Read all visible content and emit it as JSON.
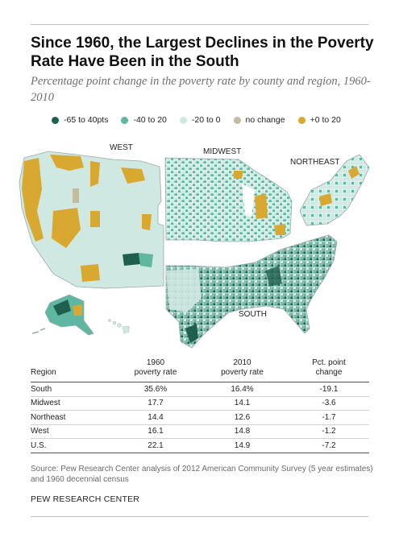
{
  "title": "Since 1960, the Largest Declines in the Poverty Rate Have Been in the South",
  "subtitle": "Percentage point change in the poverty rate by county and region, 1960-2010",
  "legend": [
    {
      "label": "-65 to 40pts",
      "color": "#1f5f4d"
    },
    {
      "label": "-40 to 20",
      "color": "#5fb7a2"
    },
    {
      "label": "-20 to 0",
      "color": "#cfe8e1"
    },
    {
      "label": "no change",
      "color": "#c6bba0"
    },
    {
      "label": "+0 to 20",
      "color": "#d9a831"
    }
  ],
  "map": {
    "region_labels": {
      "west": "WEST",
      "midwest": "MIDWEST",
      "northeast": "NORTHEAST",
      "south": "SOUTH"
    },
    "colors": {
      "base": "#cfe8e1",
      "teal": "#5fb7a2",
      "dark": "#1f5f4d",
      "gold": "#d9a831",
      "tan": "#c6bba0",
      "border": "#ffffff",
      "outline": "#9aa"
    }
  },
  "table": {
    "headers": {
      "region": "Region",
      "p1960_line1": "1960",
      "p1960_line2": "poverty rate",
      "p2010_line1": "2010",
      "p2010_line2": "poverty rate",
      "change_line1": "Pct. point",
      "change_line2": "change"
    },
    "rows": [
      {
        "region": "South",
        "p1960": "35.6%",
        "p2010": "16.4%",
        "change": "-19.1"
      },
      {
        "region": "Midwest",
        "p1960": "17.7",
        "p2010": "14.1",
        "change": "-3.6"
      },
      {
        "region": "Northeast",
        "p1960": "14.4",
        "p2010": "12.6",
        "change": "-1.7"
      },
      {
        "region": "West",
        "p1960": "16.1",
        "p2010": "14.8",
        "change": "-1.2"
      },
      {
        "region": "U.S.",
        "p1960": "22.1",
        "p2010": "14.9",
        "change": "-7.2"
      }
    ]
  },
  "source": "Source: Pew Research Center analysis of 2012 American Community Survey (5 year estimates) and 1960 decennial census",
  "credit": "PEW RESEARCH CENTER"
}
